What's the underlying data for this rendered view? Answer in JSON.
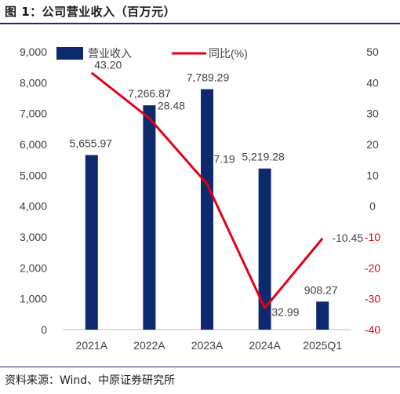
{
  "figure": {
    "title": "图 1：公司营业收入（百万元）",
    "source": "资料来源：Wind、中原证券研究所"
  },
  "chart_data": {
    "type": "bar",
    "categories": [
      "2021A",
      "2022A",
      "2023A",
      "2024A",
      "2025Q1"
    ],
    "series": [
      {
        "name": "营业收入",
        "type": "bar",
        "axis": "left",
        "values": [
          5655.97,
          7266.87,
          7789.29,
          5219.28,
          908.27
        ],
        "labels": [
          "5,655.97",
          "7,266.87",
          "7,789.29",
          "5,219.28",
          "908.27"
        ],
        "color": "#0e2a6e"
      },
      {
        "name": "同比(%)",
        "type": "line",
        "axis": "right",
        "values": [
          43.2,
          28.48,
          7.19,
          -32.99,
          -10.45
        ],
        "labels": [
          "43.20",
          "28.48",
          "7.19",
          "-32.99",
          "-10.45"
        ],
        "color": "#e50012"
      }
    ],
    "y_left": {
      "range": [
        0,
        9000
      ],
      "ticks": [
        0,
        1000,
        2000,
        3000,
        4000,
        5000,
        6000,
        7000,
        8000,
        9000
      ],
      "tick_labels": [
        "0",
        "1,000",
        "2,000",
        "3,000",
        "4,000",
        "5,000",
        "6,000",
        "7,000",
        "8,000",
        "9,000"
      ]
    },
    "y_right": {
      "range": [
        -40,
        50
      ],
      "ticks": [
        -40,
        -30,
        -20,
        -10,
        0,
        10,
        20,
        30,
        40,
        50
      ],
      "tick_labels": [
        "-40",
        "-30",
        "-20",
        "-10",
        "0",
        "10",
        "20",
        "30",
        "40",
        "50"
      ],
      "negative_tick_color": "#e50012"
    },
    "legend": {
      "position": "top-left"
    },
    "grid": false
  }
}
